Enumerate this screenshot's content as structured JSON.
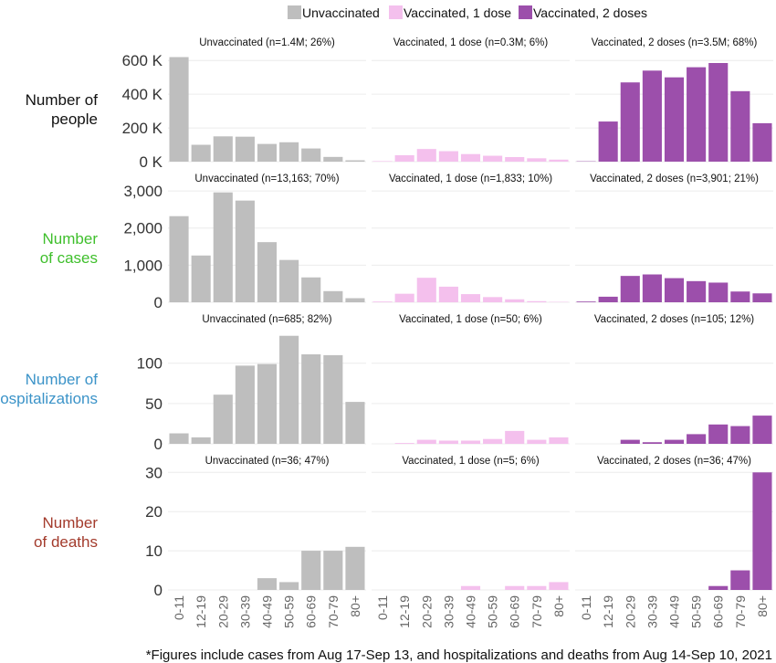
{
  "colors": {
    "unvaccinated": "#bebebe",
    "one_dose": "#f4c0ed",
    "two_doses": "#9c4fab",
    "row_people": "#111111",
    "row_cases": "#3fbf2c",
    "row_hosp": "#3b93c8",
    "row_deaths": "#a33b2c"
  },
  "legend": [
    {
      "label": "Unvaccinated",
      "color": "#bebebe"
    },
    {
      "label": "Vaccinated, 1 dose",
      "color": "#f4c0ed"
    },
    {
      "label": "Vaccinated, 2 doses",
      "color": "#9c4fab"
    }
  ],
  "footnote": "*Figures include cases from Aug 17-Sep 13, and hospitalizations and deaths from Aug 14-Sep 10, 2021",
  "chart_data": {
    "type": "bar",
    "layout": "faceted grid (rows: metrics, columns: vaccination status)",
    "categories": [
      "0-11",
      "12-19",
      "20-29",
      "30-39",
      "40-49",
      "50-59",
      "60-69",
      "70-79",
      "80+"
    ],
    "legend_position": "top",
    "rows": [
      {
        "label_lines": [
          "Number of",
          "people"
        ],
        "color_key": "row_people",
        "ylim": [
          0,
          650000
        ],
        "yticks": [
          0,
          200000,
          400000,
          600000
        ],
        "ytick_labels": [
          "0 K",
          "200 K",
          "400 K",
          "600 K"
        ],
        "panels": [
          {
            "title": "Unvaccinated (n=1.4M; 26%)",
            "series": "unvaccinated",
            "values": [
              620000,
              100000,
              150000,
              148000,
              105000,
              115000,
              78000,
              28000,
              8000
            ]
          },
          {
            "title": "Vaccinated, 1 dose (n=0.3M; 6%)",
            "series": "one_dose",
            "values": [
              3000,
              38000,
              75000,
              62000,
              45000,
              35000,
              27000,
              20000,
              12000
            ]
          },
          {
            "title": "Vaccinated, 2 doses (n=3.5M; 68%)",
            "series": "two_doses",
            "values": [
              2000,
              238000,
              470000,
              540000,
              500000,
              560000,
              585000,
              418000,
              228000
            ]
          }
        ]
      },
      {
        "label_lines": [
          "Number",
          "of cases"
        ],
        "color_key": "row_cases",
        "ylim": [
          0,
          3100
        ],
        "yticks": [
          0,
          1000,
          2000,
          3000
        ],
        "ytick_labels": [
          "0",
          "1,000",
          "2,000",
          "3,000"
        ],
        "panels": [
          {
            "title": "Unvaccinated (n=13,163; 70%)",
            "series": "unvaccinated",
            "values": [
              2320,
              1260,
              2960,
              2740,
              1620,
              1140,
              670,
              300,
              110
            ]
          },
          {
            "title": "Vaccinated, 1 dose (n=1,833; 10%)",
            "series": "one_dose",
            "values": [
              20,
              230,
              660,
              420,
              220,
              140,
              80,
              30,
              10
            ]
          },
          {
            "title": "Vaccinated, 2 doses (n=3,901; 21%)",
            "series": "two_doses",
            "values": [
              20,
              150,
              710,
              750,
              650,
              570,
              530,
              290,
              240
            ]
          }
        ]
      },
      {
        "label_lines": [
          "Number of",
          "hospitalizations"
        ],
        "color_key": "row_hosp",
        "ylim": [
          0,
          145
        ],
        "yticks": [
          0,
          50,
          100
        ],
        "ytick_labels": [
          "0",
          "50",
          "100"
        ],
        "panels": [
          {
            "title": "Unvaccinated (n=685; 82%)",
            "series": "unvaccinated",
            "values": [
              13,
              8,
              61,
              97,
              99,
              134,
              111,
              110,
              52
            ]
          },
          {
            "title": "Vaccinated, 1 dose (n=50; 6%)",
            "series": "one_dose",
            "values": [
              0,
              1,
              5,
              4,
              4,
              6,
              16,
              5,
              8
            ]
          },
          {
            "title": "Vaccinated, 2 doses (n=105; 12%)",
            "series": "two_doses",
            "values": [
              0,
              0,
              5,
              2,
              5,
              12,
              24,
              22,
              35
            ]
          }
        ]
      },
      {
        "label_lines": [
          "Number",
          "of deaths"
        ],
        "color_key": "row_deaths",
        "ylim": [
          0,
          31
        ],
        "yticks": [
          0,
          10,
          20,
          30
        ],
        "ytick_labels": [
          "0",
          "10",
          "20",
          "30"
        ],
        "panels": [
          {
            "title": "Unvaccinated (n=36; 47%)",
            "series": "unvaccinated",
            "values": [
              0,
              0,
              0,
              0,
              3,
              2,
              10,
              10,
              11
            ]
          },
          {
            "title": "Vaccinated, 1 dose (n=5; 6%)",
            "series": "one_dose",
            "values": [
              0,
              0,
              0,
              0,
              1,
              0,
              1,
              1,
              2
            ]
          },
          {
            "title": "Vaccinated, 2 doses (n=36; 47%)",
            "series": "two_doses",
            "values": [
              0,
              0,
              0,
              0,
              0,
              0,
              1,
              5,
              30
            ]
          }
        ]
      }
    ]
  }
}
